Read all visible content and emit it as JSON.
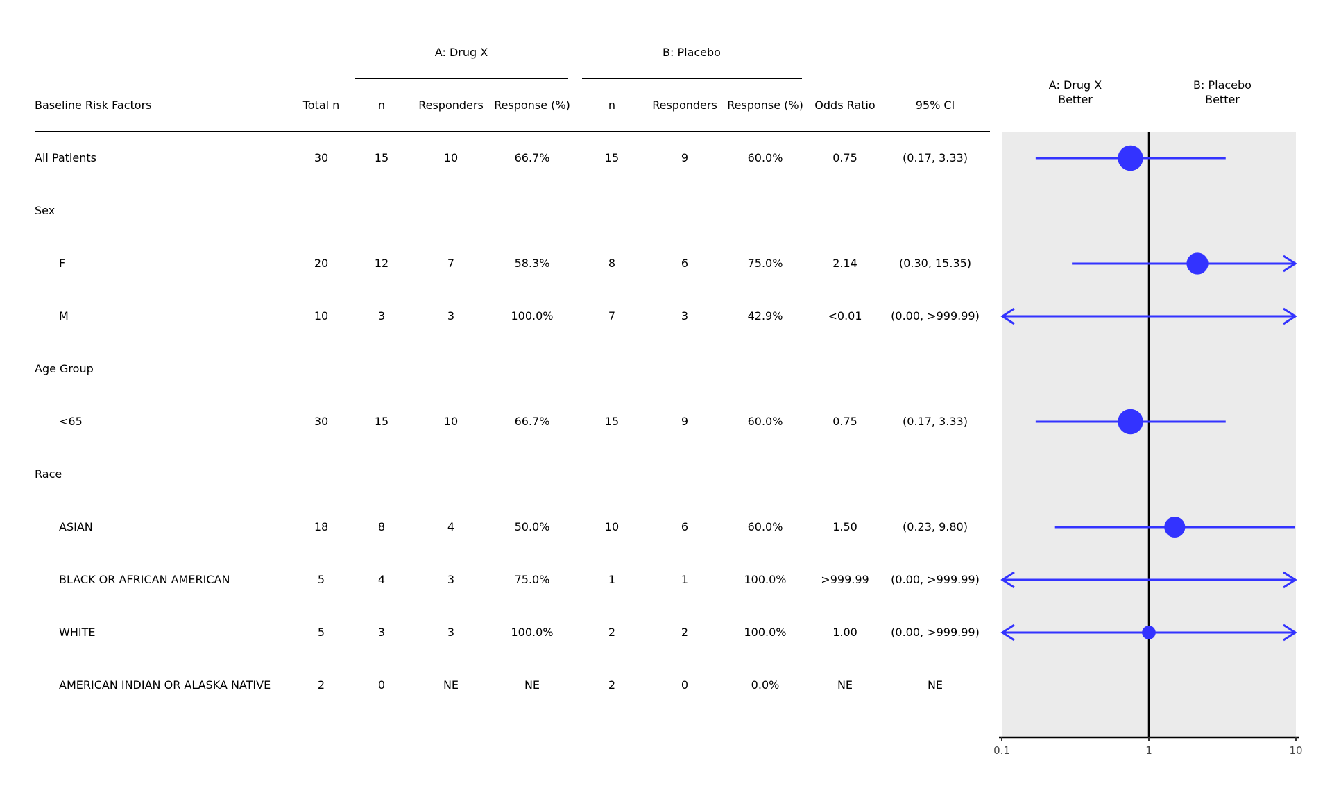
{
  "table": {
    "group_headers": [
      "A: Drug X",
      "B: Placebo"
    ],
    "columns": [
      "Baseline Risk Factors",
      "Total n",
      "n",
      "Responders",
      "Response (%)",
      "n",
      "Responders",
      "Response (%)",
      "Odds Ratio",
      "95% CI"
    ],
    "rows": [
      {
        "label": "All Patients",
        "indent": false,
        "cells": [
          "30",
          "15",
          "10",
          "66.7%",
          "15",
          "9",
          "60.0%",
          "0.75",
          "(0.17, 3.33)"
        ]
      },
      {
        "label": "Sex",
        "indent": false,
        "cells": []
      },
      {
        "label": "F",
        "indent": true,
        "cells": [
          "20",
          "12",
          "7",
          "58.3%",
          "8",
          "6",
          "75.0%",
          "2.14",
          "(0.30, 15.35)"
        ]
      },
      {
        "label": "M",
        "indent": true,
        "cells": [
          "10",
          "3",
          "3",
          "100.0%",
          "7",
          "3",
          "42.9%",
          "<0.01",
          "(0.00, >999.99)"
        ]
      },
      {
        "label": "Age Group",
        "indent": false,
        "cells": []
      },
      {
        "label": "<65",
        "indent": true,
        "cells": [
          "30",
          "15",
          "10",
          "66.7%",
          "15",
          "9",
          "60.0%",
          "0.75",
          "(0.17, 3.33)"
        ]
      },
      {
        "label": "Race",
        "indent": false,
        "cells": []
      },
      {
        "label": "ASIAN",
        "indent": true,
        "cells": [
          "18",
          "8",
          "4",
          "50.0%",
          "10",
          "6",
          "60.0%",
          "1.50",
          "(0.23, 9.80)"
        ]
      },
      {
        "label": "BLACK OR AFRICAN AMERICAN",
        "indent": true,
        "cells": [
          "5",
          "4",
          "3",
          "75.0%",
          "1",
          "1",
          "100.0%",
          ">999.99",
          "(0.00, >999.99)"
        ]
      },
      {
        "label": "WHITE",
        "indent": true,
        "cells": [
          "5",
          "3",
          "3",
          "100.0%",
          "2",
          "2",
          "100.0%",
          "1.00",
          "(0.00, >999.99)"
        ]
      },
      {
        "label": "AMERICAN INDIAN OR ALASKA NATIVE",
        "indent": true,
        "cells": [
          "2",
          "0",
          "NE",
          "NE",
          "2",
          "0",
          "0.0%",
          "NE",
          "NE"
        ]
      }
    ]
  },
  "chart_data": {
    "type": "scatter",
    "subtype": "forest",
    "left_label": "A: Drug X\nBetter",
    "right_label": "B: Placebo\nBetter",
    "x_scale": "log",
    "xlim": [
      0.1,
      10
    ],
    "x_ticks": [
      "0.1",
      "1",
      "10"
    ],
    "reference_line": 1,
    "grid": false,
    "background": "#ebebeb",
    "marker_color": "#3333ff",
    "points": [
      {
        "row": "All Patients",
        "or": 0.75,
        "lower": 0.17,
        "upper": 3.33,
        "n": 30
      },
      {
        "row": "F",
        "or": 2.14,
        "lower": 0.3,
        "upper": 15.35,
        "n": 20
      },
      {
        "row": "M",
        "or": 0.005,
        "lower": 0.0,
        "upper": 1000,
        "n": 10
      },
      {
        "row": "<65",
        "or": 0.75,
        "lower": 0.17,
        "upper": 3.33,
        "n": 30
      },
      {
        "row": "ASIAN",
        "or": 1.5,
        "lower": 0.23,
        "upper": 9.8,
        "n": 18
      },
      {
        "row": "BLACK OR AFRICAN AMERICAN",
        "or": 1000,
        "lower": 0.0,
        "upper": 1000,
        "n": 5
      },
      {
        "row": "WHITE",
        "or": 1.0,
        "lower": 0.0,
        "upper": 1000,
        "n": 5
      },
      {
        "row": "AMERICAN INDIAN OR ALASKA NATIVE",
        "or": null,
        "lower": null,
        "upper": null,
        "n": 2
      }
    ]
  }
}
